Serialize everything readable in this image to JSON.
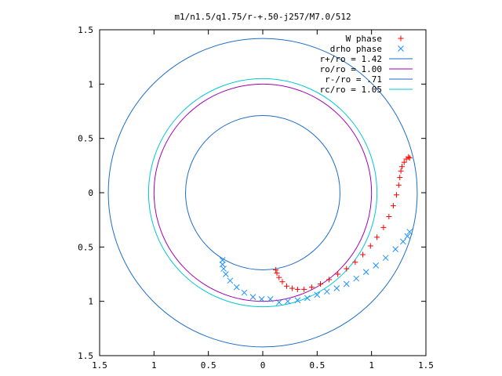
{
  "chart_data": {
    "type": "scatter",
    "title": "m1/n1.5/q1.75/r-+.50-j257/M7.0/512",
    "xlabel": "",
    "ylabel": "",
    "xlim": [
      -1.5,
      1.5
    ],
    "ylim": [
      -1.5,
      1.5
    ],
    "x_ticks": [
      -1.5,
      -1,
      -0.5,
      0,
      0.5,
      1,
      1.5
    ],
    "y_ticks": [
      -1.5,
      -1,
      -0.5,
      0,
      0.5,
      1,
      1.5
    ],
    "x_tick_labels": [
      "1.5",
      "1",
      "0.5",
      "0",
      "0.5",
      "1",
      "1.5"
    ],
    "y_tick_labels": [
      "1.5",
      "1",
      "0.5",
      "0",
      "0.5",
      "1",
      "1.5"
    ],
    "grid": false,
    "legend_position": "top-right",
    "series": [
      {
        "name": "W phase",
        "marker": "+",
        "color": "#ff0000",
        "points": [
          [
            0.12,
            -0.71
          ],
          [
            0.13,
            -0.74
          ],
          [
            0.15,
            -0.78
          ],
          [
            0.18,
            -0.82
          ],
          [
            0.22,
            -0.86
          ],
          [
            0.27,
            -0.88
          ],
          [
            0.32,
            -0.89
          ],
          [
            0.38,
            -0.89
          ],
          [
            0.45,
            -0.87
          ],
          [
            0.53,
            -0.84
          ],
          [
            0.61,
            -0.8
          ],
          [
            0.69,
            -0.75
          ],
          [
            0.77,
            -0.7
          ],
          [
            0.85,
            -0.64
          ],
          [
            0.92,
            -0.57
          ],
          [
            0.99,
            -0.49
          ],
          [
            1.05,
            -0.41
          ],
          [
            1.11,
            -0.32
          ],
          [
            1.16,
            -0.22
          ],
          [
            1.2,
            -0.12
          ],
          [
            1.23,
            -0.02
          ],
          [
            1.25,
            0.07
          ],
          [
            1.26,
            0.14
          ],
          [
            1.27,
            0.2
          ],
          [
            1.28,
            0.24
          ],
          [
            1.3,
            0.28
          ],
          [
            1.32,
            0.31
          ],
          [
            1.34,
            0.33
          ],
          [
            1.35,
            0.32
          ]
        ]
      },
      {
        "name": "drho phase",
        "marker": "x",
        "color": "#1e90ff",
        "points": [
          [
            -0.37,
            -0.62
          ],
          [
            -0.37,
            -0.66
          ],
          [
            -0.36,
            -0.7
          ],
          [
            -0.34,
            -0.75
          ],
          [
            -0.3,
            -0.81
          ],
          [
            -0.24,
            -0.87
          ],
          [
            -0.17,
            -0.92
          ],
          [
            -0.09,
            -0.96
          ],
          [
            -0.01,
            -0.98
          ],
          [
            0.07,
            -0.98
          ],
          [
            0.15,
            -1.01
          ],
          [
            0.23,
            -1.0
          ],
          [
            0.32,
            -0.99
          ],
          [
            0.41,
            -0.97
          ],
          [
            0.5,
            -0.94
          ],
          [
            0.59,
            -0.91
          ],
          [
            0.68,
            -0.88
          ],
          [
            0.77,
            -0.84
          ],
          [
            0.86,
            -0.79
          ],
          [
            0.95,
            -0.73
          ],
          [
            1.04,
            -0.67
          ],
          [
            1.13,
            -0.6
          ],
          [
            1.22,
            -0.52
          ],
          [
            1.29,
            -0.45
          ],
          [
            1.33,
            -0.4
          ],
          [
            1.35,
            -0.36
          ]
        ]
      }
    ],
    "circles": [
      {
        "name": "r+/ro = 1.42",
        "radius": 1.42,
        "color": "#1e6ec8"
      },
      {
        "name": "ro/ro = 1.00",
        "radius": 1.0,
        "color": "#a000b0"
      },
      {
        "name": "r-/ro = .71",
        "radius": 0.71,
        "color": "#1e6ec8"
      },
      {
        "name": "rc/ro = 1.05",
        "radius": 1.05,
        "color": "#00c8d2"
      }
    ]
  }
}
